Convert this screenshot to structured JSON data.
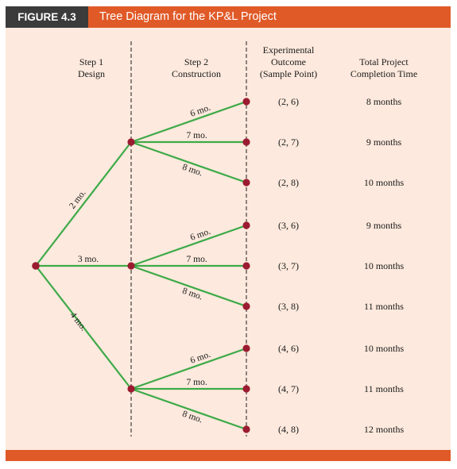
{
  "figure": {
    "label": "FIGURE 4.3",
    "title": "Tree Diagram for the KP&L Project"
  },
  "headers": {
    "step1": [
      "Step 1",
      "Design"
    ],
    "step2": [
      "Step 2",
      "Construction"
    ],
    "outcome": [
      "Experimental",
      "Outcome",
      "(Sample Point)"
    ],
    "time": [
      "Total Project",
      "Completion Time"
    ]
  },
  "colors": {
    "edge": "#3daa48",
    "node": "#9b1b30",
    "accent": "#e05a28",
    "panel": "#fde9dd"
  },
  "tree": {
    "step1": [
      {
        "label": "2 mo.",
        "step2": [
          "6 mo.",
          "7 mo.",
          "8 mo."
        ]
      },
      {
        "label": "3 mo.",
        "step2": [
          "6 mo.",
          "7 mo.",
          "8 mo."
        ]
      },
      {
        "label": "4 mo.",
        "step2": [
          "6 mo.",
          "7 mo.",
          "8 mo."
        ]
      }
    ]
  },
  "outcomes": [
    {
      "point": "(2, 6)",
      "time": "8 months"
    },
    {
      "point": "(2, 7)",
      "time": "9 months"
    },
    {
      "point": "(2, 8)",
      "time": "10 months"
    },
    {
      "point": "(3, 6)",
      "time": "9 months"
    },
    {
      "point": "(3, 7)",
      "time": "10 months"
    },
    {
      "point": "(3, 8)",
      "time": "11 months"
    },
    {
      "point": "(4, 6)",
      "time": "10 months"
    },
    {
      "point": "(4, 7)",
      "time": "11 months"
    },
    {
      "point": "(4, 8)",
      "time": "12 months"
    }
  ]
}
